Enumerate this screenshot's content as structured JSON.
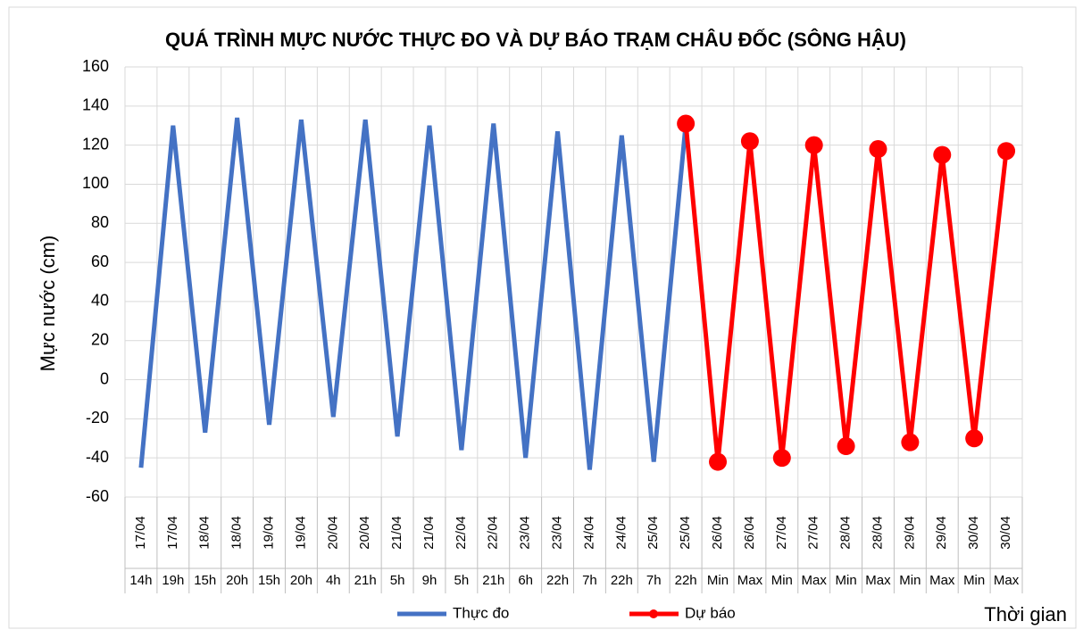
{
  "chart_data": {
    "type": "line",
    "title": "QUÁ TRÌNH MỰC NƯỚC THỰC ĐO VÀ DỰ BÁO TRẠM CHÂU ĐỐC (SÔNG HẬU)",
    "y_label": "Mực nước (cm)",
    "x_label": "Thời gian",
    "categories": [
      [
        "17/04",
        "14h"
      ],
      [
        "17/04",
        "19h"
      ],
      [
        "18/04",
        "15h"
      ],
      [
        "18/04",
        "20h"
      ],
      [
        "19/04",
        "15h"
      ],
      [
        "19/04",
        "20h"
      ],
      [
        "20/04",
        "4h"
      ],
      [
        "20/04",
        "21h"
      ],
      [
        "21/04",
        "5h"
      ],
      [
        "21/04",
        "9h"
      ],
      [
        "22/04",
        "5h"
      ],
      [
        "22/04",
        "21h"
      ],
      [
        "23/04",
        "6h"
      ],
      [
        "23/04",
        "22h"
      ],
      [
        "24/04",
        "7h"
      ],
      [
        "24/04",
        "22h"
      ],
      [
        "25/04",
        "7h"
      ],
      [
        "25/04",
        "22h"
      ],
      [
        "26/04",
        "Min"
      ],
      [
        "26/04",
        "Max"
      ],
      [
        "27/04",
        "Min"
      ],
      [
        "27/04",
        "Max"
      ],
      [
        "28/04",
        "Min"
      ],
      [
        "28/04",
        "Max"
      ],
      [
        "29/04",
        "Min"
      ],
      [
        "29/04",
        "Max"
      ],
      [
        "30/04",
        "Min"
      ],
      [
        "30/04",
        "Max"
      ]
    ],
    "series": [
      {
        "name": "Thực đo",
        "color": "#4472c4",
        "markers": false,
        "values": [
          -45,
          130,
          -27,
          134,
          -23,
          133,
          -19,
          133,
          -29,
          130,
          -36,
          131,
          -40,
          127,
          -46,
          125,
          -42,
          131,
          null,
          null,
          null,
          null,
          null,
          null,
          null,
          null,
          null,
          null
        ]
      },
      {
        "name": "Dự báo",
        "color": "#ff0000",
        "markers": true,
        "values": [
          null,
          null,
          null,
          null,
          null,
          null,
          null,
          null,
          null,
          null,
          null,
          null,
          null,
          null,
          null,
          null,
          null,
          131,
          -42,
          122,
          -40,
          120,
          -34,
          118,
          -32,
          115,
          -30,
          117
        ]
      }
    ],
    "ylim": [
      -60,
      160
    ],
    "yticks": [
      -60,
      -40,
      -20,
      0,
      20,
      40,
      60,
      80,
      100,
      120,
      140,
      160
    ],
    "grid": true
  }
}
